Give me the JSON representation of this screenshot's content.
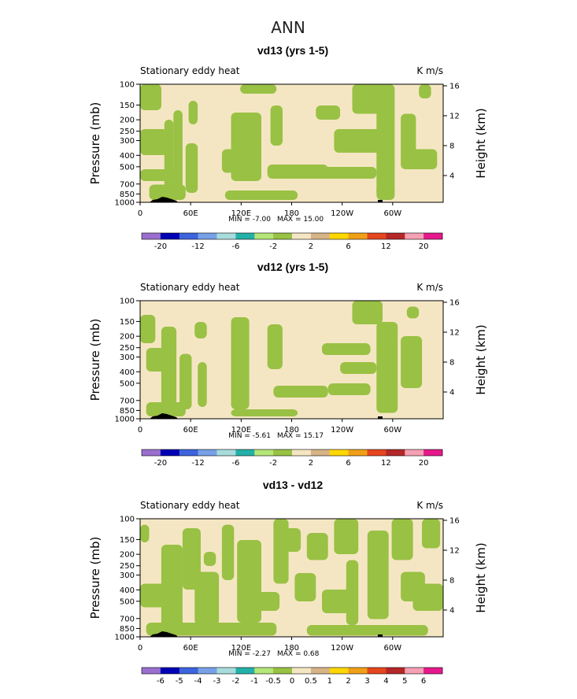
{
  "figure_title": "ANN",
  "colors": {
    "background_fill": "#f5e6c3",
    "contour_fill": "#99c144",
    "colorbar": [
      "#9a6fd0",
      "#0000b4",
      "#3c64dc",
      "#78a0e6",
      "#a8dcdc",
      "#24b0a8",
      "#b4e678",
      "#99c144",
      "#f5e6c3",
      "#d7b487",
      "#ffd700",
      "#f0a018",
      "#e6461e",
      "#b42828",
      "#f5a0b4",
      "#e6198c"
    ]
  },
  "chart_data": [
    {
      "type": "heatmap",
      "title": "vd13 (yrs 1-5)",
      "left_label": "Stationary eddy heat",
      "units": "K m/s",
      "ylabel": "Pressure (mb)",
      "ylabel_right": "Height (km)",
      "y_ticks": [
        "100",
        "150",
        "200",
        "250",
        "300",
        "400",
        "500",
        "700",
        "850",
        "1000"
      ],
      "y_right_ticks": [
        "16",
        "12",
        "8",
        "4"
      ],
      "x_ticks": [
        "0",
        "60E",
        "120E",
        "180",
        "120W",
        "60W"
      ],
      "x_range": [
        0,
        360
      ],
      "ylim_mb": [
        1000,
        100
      ],
      "min_text": "MIN =   -7.00",
      "max_text": "MAX =   15.00",
      "colorbar_labels": [
        "-20",
        "-12",
        "-6",
        "-2",
        "2",
        "6",
        "12",
        "20"
      ]
    },
    {
      "type": "heatmap",
      "title": "vd12 (yrs 1-5)",
      "left_label": "Stationary eddy heat",
      "units": "K m/s",
      "ylabel": "Pressure (mb)",
      "ylabel_right": "Height (km)",
      "y_ticks": [
        "100",
        "150",
        "200",
        "250",
        "300",
        "400",
        "500",
        "700",
        "850",
        "1000"
      ],
      "y_right_ticks": [
        "16",
        "12",
        "8",
        "4"
      ],
      "x_ticks": [
        "0",
        "60E",
        "120E",
        "180",
        "120W",
        "60W"
      ],
      "x_range": [
        0,
        360
      ],
      "ylim_mb": [
        1000,
        100
      ],
      "min_text": "MIN =   -5.61",
      "max_text": "MAX =   15.17",
      "colorbar_labels": [
        "-20",
        "-12",
        "-6",
        "-2",
        "2",
        "6",
        "12",
        "20"
      ]
    },
    {
      "type": "heatmap",
      "title": "vd13 - vd12",
      "left_label": "Stationary eddy heat",
      "units": "K m/s",
      "ylabel": "Pressure (mb)",
      "ylabel_right": "Height (km)",
      "y_ticks": [
        "100",
        "150",
        "200",
        "250",
        "300",
        "400",
        "500",
        "700",
        "850",
        "1000"
      ],
      "y_right_ticks": [
        "16",
        "12",
        "8",
        "4"
      ],
      "x_ticks": [
        "0",
        "60E",
        "120E",
        "180",
        "120W",
        "60W"
      ],
      "x_range": [
        0,
        360
      ],
      "ylim_mb": [
        1000,
        100
      ],
      "min_text": "MIN =   -2.27",
      "max_text": "MAX =    0.68",
      "colorbar_labels": [
        "-6",
        "-5",
        "-4",
        "-3",
        "-2",
        "-1",
        "-0.5",
        "0",
        "0.5",
        "1",
        "2",
        "3",
        "4",
        "5",
        "6"
      ]
    }
  ]
}
